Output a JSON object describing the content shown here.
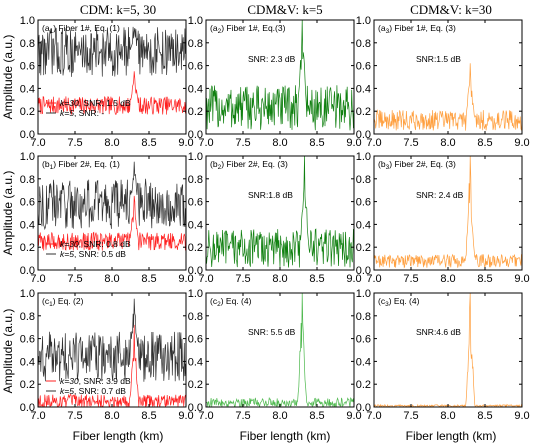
{
  "column_titles": [
    "CDM: k=5, 30",
    "CDM&V: k=5",
    "CDM&V: k=30"
  ],
  "ylabel": "Amplitude (a.u.)",
  "xlabel": "Fiber length (km)",
  "xticks": [
    "7.0",
    "7.5",
    "8.0",
    "8.5",
    "9.0"
  ],
  "yticks": [
    "0.0",
    "0.2",
    "0.4",
    "0.6",
    "0.8",
    "1.0"
  ],
  "colors": {
    "k30_red": "#ff2020",
    "k5_black": "#303030",
    "green_dark": "#108010",
    "green_light": "#4cb84c",
    "orange": "#ffa040"
  },
  "chart_data": [
    {
      "type": "line",
      "xlim": [
        7.0,
        9.0
      ],
      "ylim": [
        0.0,
        1.0
      ],
      "panel_label": "(a1) Fiber 1#, Eq. (1)",
      "annotations": [
        "k=30, SNR: 1.5 dB",
        "k=5, SNR: -"
      ],
      "series": [
        {
          "name": "k=30",
          "color": "#ff2020",
          "base": 0.25,
          "noise": 0.08,
          "peak_x": 8.3,
          "peak": 0.55
        },
        {
          "name": "k=5",
          "color": "#303030",
          "base": 0.72,
          "noise": 0.22,
          "peak_x": 8.3,
          "peak": 0.9
        }
      ]
    },
    {
      "type": "line",
      "xlim": [
        7.0,
        9.0
      ],
      "ylim": [
        0.0,
        1.0
      ],
      "panel_label": "(a2) Fiber 1#, Eq.(3)",
      "annotations": [
        "SNR: 2.3 dB"
      ],
      "series": [
        {
          "name": "",
          "color": "#108010",
          "base": 0.23,
          "noise": 0.2,
          "peak_x": 8.3,
          "peak": 1.0
        }
      ]
    },
    {
      "type": "line",
      "xlim": [
        7.0,
        9.0
      ],
      "ylim": [
        0.0,
        1.0
      ],
      "panel_label": "(a3) Fiber 1#, Eq. (3)",
      "annotations": [
        "SNR:1.5 dB"
      ],
      "series": [
        {
          "name": "",
          "color": "#ffa040",
          "base": 0.12,
          "noise": 0.09,
          "peak_x": 8.3,
          "peak": 0.62
        }
      ]
    },
    {
      "type": "line",
      "xlim": [
        7.0,
        9.0
      ],
      "ylim": [
        0.0,
        1.0
      ],
      "panel_label": "(b1) Fiber 2#, Eq. (1)",
      "annotations": [
        "k=30, SNR: 0.8 dB",
        "k=5, SNR: 0.5 dB"
      ],
      "series": [
        {
          "name": "k=30",
          "color": "#ff2020",
          "base": 0.25,
          "noise": 0.08,
          "peak_x": 8.3,
          "peak": 0.65
        },
        {
          "name": "k=5",
          "color": "#303030",
          "base": 0.58,
          "noise": 0.22,
          "peak_x": 8.3,
          "peak": 0.95
        }
      ]
    },
    {
      "type": "line",
      "xlim": [
        7.0,
        9.0
      ],
      "ylim": [
        0.0,
        1.0
      ],
      "panel_label": "(b2) Fiber 2#, Eq. (3)",
      "annotations": [
        "SNR:1.8 dB"
      ],
      "series": [
        {
          "name": "",
          "color": "#108010",
          "base": 0.19,
          "noise": 0.17,
          "peak_x": 8.33,
          "peak": 1.0
        }
      ]
    },
    {
      "type": "line",
      "xlim": [
        7.0,
        9.0
      ],
      "ylim": [
        0.0,
        1.0
      ],
      "panel_label": "(b3) Fiber 2#, Eq. (3)",
      "annotations": [
        "SNR: 2.4 dB"
      ],
      "series": [
        {
          "name": "",
          "color": "#ffa040",
          "base": 0.08,
          "noise": 0.06,
          "peak_x": 8.3,
          "peak": 1.0
        }
      ]
    },
    {
      "type": "line",
      "xlim": [
        7.0,
        9.0
      ],
      "ylim": [
        0.0,
        1.0
      ],
      "panel_label": "(c1) Eq. (2)",
      "annotations": [
        "k=30, SNR: 3.9 dB",
        "k=5, SNR: 0.7 dB"
      ],
      "series": [
        {
          "name": "k=30",
          "color": "#ff2020",
          "base": 0.05,
          "noise": 0.06,
          "peak_x": 8.3,
          "peak": 0.72
        },
        {
          "name": "k=5",
          "color": "#303030",
          "base": 0.44,
          "noise": 0.22,
          "peak_x": 8.3,
          "peak": 0.95
        }
      ]
    },
    {
      "type": "line",
      "xlim": [
        7.0,
        9.0
      ],
      "ylim": [
        0.0,
        1.0
      ],
      "panel_label": "(c2) Eq. (4)",
      "annotations": [
        "SNR: 5.5 dB"
      ],
      "series": [
        {
          "name": "",
          "color": "#4cb84c",
          "base": 0.04,
          "noise": 0.04,
          "peak_x": 8.3,
          "peak": 1.0
        }
      ]
    },
    {
      "type": "line",
      "xlim": [
        7.0,
        9.0
      ],
      "ylim": [
        0.0,
        1.0
      ],
      "panel_label": "(c3) Eq. (4)",
      "annotations": [
        "SNR:4.6 dB"
      ],
      "series": [
        {
          "name": "",
          "color": "#ffa040",
          "base": 0.01,
          "noise": 0.01,
          "peak_x": 8.3,
          "peak": 1.0
        }
      ]
    }
  ]
}
